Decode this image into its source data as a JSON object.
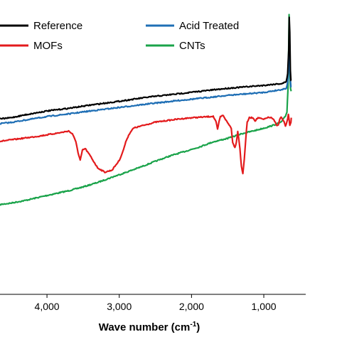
{
  "chart_data": {
    "type": "line",
    "title": "",
    "xlabel": "Wave number (cm-1)",
    "xlabel_parts": {
      "main": "Wave number (cm",
      "sup": "-1",
      "tail": ")"
    },
    "ylabel": "",
    "x_reversed": true,
    "xlim": [
      4650,
      420
    ],
    "x_ticks": [
      4000,
      3000,
      2000,
      1000
    ],
    "x_tick_labels": [
      "4,000",
      "3,000",
      "2,000",
      "1,000"
    ],
    "ylim": [
      0,
      100
    ],
    "legend_placement": "top",
    "series": [
      {
        "name": "Reference",
        "color": "#000000",
        "points": [
          [
            4650,
            59.6
          ],
          [
            4500,
            60.0
          ],
          [
            4300,
            61.0
          ],
          [
            4000,
            62.3
          ],
          [
            3700,
            63.2
          ],
          [
            3400,
            64.3
          ],
          [
            3000,
            65.6
          ],
          [
            2600,
            67.0
          ],
          [
            2200,
            68.1
          ],
          [
            1800,
            69.2
          ],
          [
            1500,
            70.0
          ],
          [
            1200,
            70.6
          ],
          [
            1000,
            71.0
          ],
          [
            850,
            71.4
          ],
          [
            750,
            71.6
          ],
          [
            690,
            72.2
          ],
          [
            670,
            75
          ],
          [
            655,
            83
          ],
          [
            648,
            94
          ],
          [
            640,
            89
          ],
          [
            632,
            76
          ],
          [
            625,
            72.5
          ],
          [
            620,
            72.6
          ]
        ]
      },
      {
        "name": "Acid Treated",
        "color": "#1f6fb5",
        "points": [
          [
            4650,
            58.0
          ],
          [
            4500,
            58.4
          ],
          [
            4300,
            59.2
          ],
          [
            4000,
            60.4
          ],
          [
            3700,
            61.3
          ],
          [
            3400,
            62.3
          ],
          [
            3000,
            63.5
          ],
          [
            2600,
            64.7
          ],
          [
            2200,
            65.8
          ],
          [
            1800,
            66.8
          ],
          [
            1500,
            67.6
          ],
          [
            1200,
            68.2
          ],
          [
            1000,
            68.6
          ],
          [
            850,
            69.2
          ],
          [
            750,
            69.6
          ],
          [
            690,
            70.0
          ],
          [
            670,
            72
          ],
          [
            655,
            77
          ],
          [
            648,
            82
          ],
          [
            640,
            79
          ],
          [
            632,
            73
          ],
          [
            625,
            70.6
          ],
          [
            620,
            70.6
          ]
        ]
      },
      {
        "name": "MOFs",
        "color": "#e31a1c",
        "points": [
          [
            4650,
            52.0
          ],
          [
            4400,
            52.8
          ],
          [
            4100,
            53.8
          ],
          [
            3800,
            55.0
          ],
          [
            3700,
            55.5
          ],
          [
            3650,
            54.5
          ],
          [
            3600,
            52.0
          ],
          [
            3570,
            48.0
          ],
          [
            3540,
            45.5
          ],
          [
            3510,
            49.0
          ],
          [
            3470,
            49.5
          ],
          [
            3400,
            47.0
          ],
          [
            3300,
            43.0
          ],
          [
            3200,
            41.5
          ],
          [
            3100,
            42.2
          ],
          [
            3000,
            45.5
          ],
          [
            2950,
            48.5
          ],
          [
            2900,
            52.5
          ],
          [
            2850,
            55.0
          ],
          [
            2800,
            56.5
          ],
          [
            2500,
            58.5
          ],
          [
            2200,
            59.5
          ],
          [
            2000,
            60.0
          ],
          [
            1800,
            60.3
          ],
          [
            1700,
            60.5
          ],
          [
            1660,
            58.5
          ],
          [
            1640,
            56.0
          ],
          [
            1620,
            58.5
          ],
          [
            1600,
            60.4
          ],
          [
            1560,
            60.8
          ],
          [
            1520,
            59.0
          ],
          [
            1450,
            56.5
          ],
          [
            1430,
            51.5
          ],
          [
            1400,
            50.0
          ],
          [
            1380,
            51.5
          ],
          [
            1360,
            55.5
          ],
          [
            1330,
            49.5
          ],
          [
            1310,
            43.5
          ],
          [
            1290,
            41.0
          ],
          [
            1270,
            46.0
          ],
          [
            1250,
            52.5
          ],
          [
            1230,
            58.5
          ],
          [
            1200,
            60.0
          ],
          [
            1150,
            60.0
          ],
          [
            1120,
            59.0
          ],
          [
            1080,
            60.0
          ],
          [
            1000,
            59.4
          ],
          [
            950,
            60.1
          ],
          [
            900,
            60.0
          ],
          [
            860,
            59.2
          ],
          [
            820,
            57.5
          ],
          [
            800,
            57.4
          ],
          [
            780,
            59.5
          ],
          [
            760,
            60.2
          ],
          [
            720,
            58.5
          ],
          [
            700,
            57.2
          ],
          [
            680,
            58.5
          ],
          [
            660,
            61.0
          ],
          [
            640,
            57.5
          ],
          [
            625,
            58.5
          ],
          [
            620,
            60.0
          ]
        ]
      },
      {
        "name": "CNTs",
        "color": "#1aa34a",
        "points": [
          [
            4650,
            30.5
          ],
          [
            4500,
            31.0
          ],
          [
            4300,
            31.9
          ],
          [
            4000,
            33.6
          ],
          [
            3700,
            35.2
          ],
          [
            3500,
            36.5
          ],
          [
            3300,
            38.0
          ],
          [
            3100,
            39.8
          ],
          [
            2900,
            41.5
          ],
          [
            2700,
            43.3
          ],
          [
            2500,
            45.2
          ],
          [
            2300,
            47.0
          ],
          [
            2100,
            48.5
          ],
          [
            1900,
            50.0
          ],
          [
            1700,
            51.8
          ],
          [
            1500,
            53.0
          ],
          [
            1300,
            54.6
          ],
          [
            1100,
            55.8
          ],
          [
            950,
            56.8
          ],
          [
            850,
            57.6
          ],
          [
            760,
            58.5
          ],
          [
            700,
            60.5
          ],
          [
            680,
            62
          ],
          [
            665,
            70
          ],
          [
            655,
            85
          ],
          [
            650,
            95
          ],
          [
            645,
            88
          ],
          [
            638,
            74
          ],
          [
            630,
            70
          ],
          [
            622,
            69
          ]
        ]
      }
    ]
  }
}
